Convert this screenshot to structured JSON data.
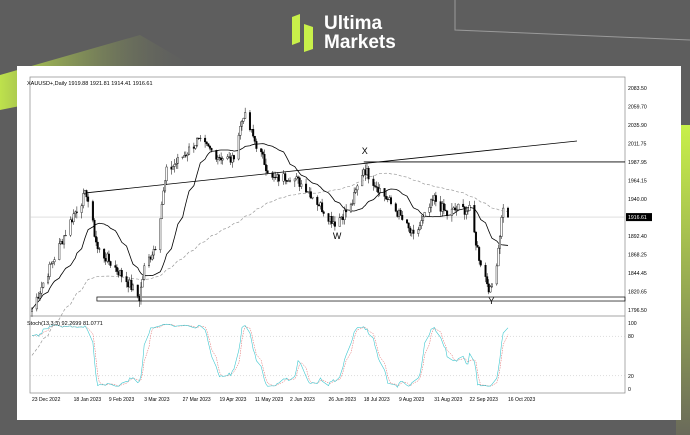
{
  "brand": {
    "line1": "Ultima",
    "line2": "Markets",
    "accent": "#c8f04a"
  },
  "chart_data": {
    "type": "candlestick",
    "symbol_header": "XAUUSD+,Daily  1919.88 1921.81 1914.41 1916.61",
    "last_price": "1916.61",
    "yticks": [
      "2083.50",
      "2059.70",
      "2035.90",
      "2011.75",
      "1987.95",
      "1964.15",
      "1940.00",
      "1892.40",
      "1868.25",
      "1844.45",
      "1820.65",
      "1796.50"
    ],
    "ylim": [
      1796.5,
      2083.5
    ],
    "xticks": [
      "23 Dec 2022",
      "18 Jan 2023",
      "9 Feb 2023",
      "3 Mar 2023",
      "27 Mar 2023",
      "19 Apr 2023",
      "11 May 2023",
      "2 Jun 2023",
      "26 Jun 2023",
      "18 Jul 2023",
      "9 Aug 2023",
      "31 Aug 2023",
      "22 Sep 2023",
      "16 Oct 2023"
    ],
    "keypoints": [
      {
        "date": "23 Dec 2022",
        "close": 1798
      },
      {
        "date": "5 Jan 2023",
        "close": 1860
      },
      {
        "date": "18 Jan 2023",
        "close": 1920
      },
      {
        "date": "26 Jan 2023",
        "close": 1948
      },
      {
        "date": "2 Feb 2023",
        "close": 1875
      },
      {
        "date": "9 Feb 2023",
        "close": 1860
      },
      {
        "date": "20 Feb 2023",
        "close": 1835
      },
      {
        "date": "28 Feb 2023",
        "close": 1812
      },
      {
        "date": "3 Mar 2023",
        "close": 1850
      },
      {
        "date": "10 Mar 2023",
        "close": 1880
      },
      {
        "date": "17 Mar 2023",
        "close": 1975
      },
      {
        "date": "27 Mar 2023",
        "close": 1995
      },
      {
        "date": "5 Apr 2023",
        "close": 2015
      },
      {
        "date": "19 Apr 2023",
        "close": 1995
      },
      {
        "date": "27 Apr 2023",
        "close": 1990
      },
      {
        "date": "4 May 2023",
        "close": 2050
      },
      {
        "date": "11 May 2023",
        "close": 2015
      },
      {
        "date": "22 May 2023",
        "close": 1965
      },
      {
        "date": "2 Jun 2023",
        "close": 1970
      },
      {
        "date": "12 Jun 2023",
        "close": 1955
      },
      {
        "date": "26 Jun 2023",
        "close": 1918
      },
      {
        "date": "30 Jun 2023",
        "close": 1910
      },
      {
        "date": "10 Jul 2023",
        "close": 1930
      },
      {
        "date": "18 Jul 2023",
        "close": 1980
      },
      {
        "date": "27 Jul 2023",
        "close": 1955
      },
      {
        "date": "9 Aug 2023",
        "close": 1920
      },
      {
        "date": "18 Aug 2023",
        "close": 1890
      },
      {
        "date": "31 Aug 2023",
        "close": 1940
      },
      {
        "date": "8 Sep 2023",
        "close": 1920
      },
      {
        "date": "15 Sep 2023",
        "close": 1928
      },
      {
        "date": "22 Sep 2023",
        "close": 1925
      },
      {
        "date": "28 Sep 2023",
        "close": 1865
      },
      {
        "date": "5 Oct 2023",
        "close": 1820
      },
      {
        "date": "9 Oct 2023",
        "close": 1860
      },
      {
        "date": "13 Oct 2023",
        "close": 1932
      },
      {
        "date": "16 Oct 2023",
        "close": 1916.61
      }
    ],
    "annotations": [
      "X",
      "W",
      "Y"
    ],
    "horizontal_levels": [
      1987.95,
      1812
    ],
    "moving_averages": [
      {
        "style": "solid",
        "color": "#000000"
      },
      {
        "style": "dashed",
        "color": "#999999"
      }
    ],
    "stoch": {
      "label": "Stoch(13,3,3) 92.2699 81.0771",
      "yticks": [
        "100",
        "80",
        "20",
        "0"
      ],
      "k_color": "#40c8d0",
      "d_color": "#e06060"
    }
  }
}
